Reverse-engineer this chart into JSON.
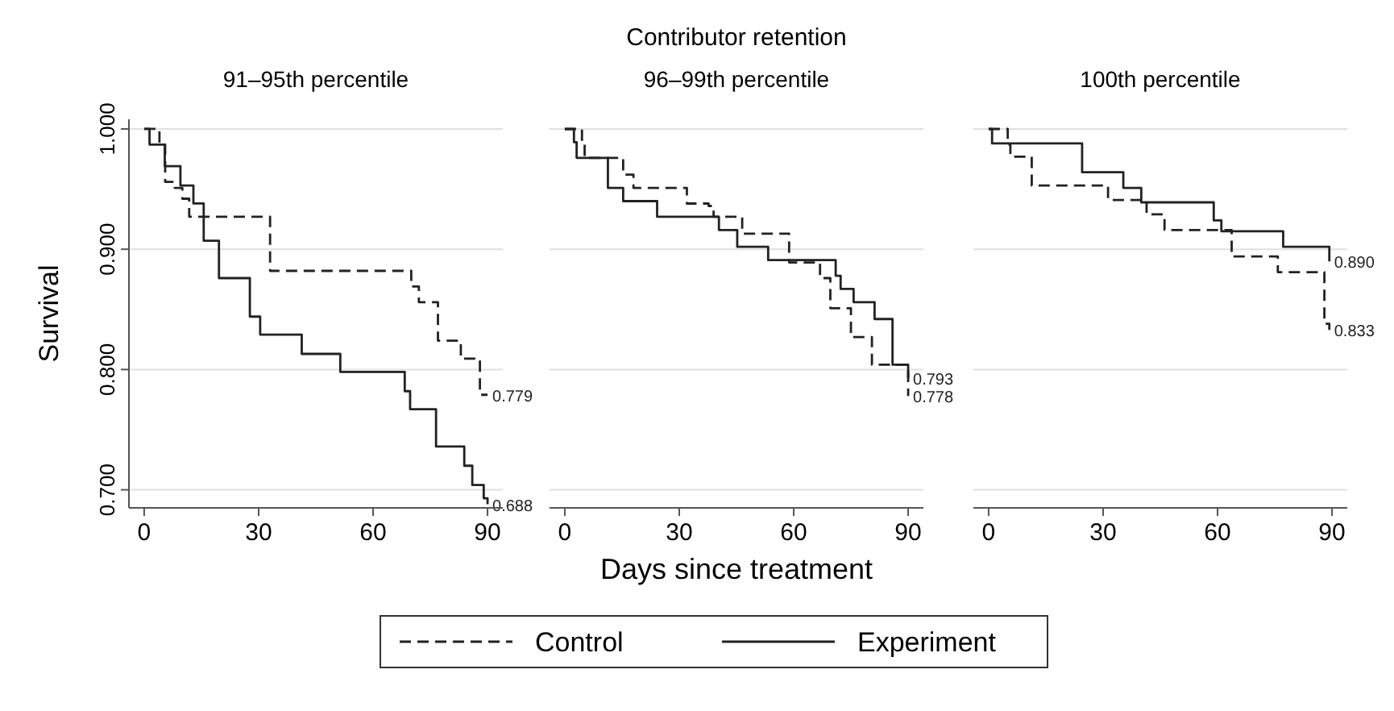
{
  "chart_data": [
    {
      "type": "step",
      "title": "91–95th percentile",
      "ylabel": "Survival",
      "xlim": [
        -4,
        94
      ],
      "xticks": [
        0,
        30,
        60,
        90
      ],
      "ylim": [
        0.685,
        1.008
      ],
      "yticks": [
        {
          "value": 0.7,
          "label": "0.700"
        },
        {
          "value": 0.8,
          "label": "0.800"
        },
        {
          "value": 0.9,
          "label": "0.900"
        },
        {
          "value": 1,
          "label": "1.000"
        }
      ],
      "grid": "y",
      "legend": false,
      "series": [
        {
          "color": "#222222",
          "line_style": "dashed",
          "x": [
            0,
            4,
            5.5,
            8,
            10,
            11.8,
            33,
            70,
            72,
            77,
            83,
            88,
            90
          ],
          "values": [
            1,
            0.987,
            0.956,
            0.951,
            0.942,
            0.927,
            0.882,
            0.869,
            0.856,
            0.824,
            0.809,
            0.779,
            0.779
          ],
          "value_labels": [
            null,
            null,
            null,
            null,
            null,
            null,
            null,
            null,
            null,
            null,
            null,
            null,
            "0.779"
          ]
        },
        {
          "color": "#222222",
          "line_style": "solid",
          "x": [
            0,
            1.4,
            5.4,
            9.5,
            12.9,
            15.6,
            19.6,
            27.7,
            30.4,
            41.3,
            51.4,
            68.3,
            69.7,
            76.5,
            83.9,
            86,
            89,
            90
          ],
          "values": [
            1,
            0.987,
            0.969,
            0.953,
            0.938,
            0.907,
            0.876,
            0.844,
            0.829,
            0.813,
            0.798,
            0.782,
            0.767,
            0.736,
            0.72,
            0.704,
            0.693,
            0.688
          ],
          "value_labels": [
            null,
            null,
            null,
            null,
            null,
            null,
            null,
            null,
            null,
            null,
            null,
            null,
            null,
            null,
            null,
            null,
            null,
            "0.688"
          ]
        }
      ]
    },
    {
      "type": "step",
      "title": "96–99th percentile",
      "xlabel": "Days since treatment",
      "annotations": [
        "Contributor retention"
      ],
      "xlim": [
        -4,
        94
      ],
      "xticks": [
        0,
        30,
        60,
        90
      ],
      "ylim": [
        0.685,
        1
      ],
      "yticks": [
        0.7,
        0.8,
        0.9,
        1
      ],
      "grid": "y",
      "tick_labels": "x",
      "legend": "bottom",
      "series": [
        {
          "name": "Control",
          "color": "#222222",
          "line_style": "dashed",
          "x": [
            0,
            4.5,
            5.2,
            15.3,
            18,
            32,
            37.7,
            39,
            46.5,
            58.8,
            66.9,
            69.6,
            75,
            80.5,
            90
          ],
          "values": [
            1,
            0.989,
            0.976,
            0.962,
            0.951,
            0.938,
            0.936,
            0.927,
            0.913,
            0.889,
            0.876,
            0.851,
            0.827,
            0.804,
            0.778
          ],
          "value_labels": [
            null,
            null,
            null,
            null,
            null,
            null,
            null,
            null,
            null,
            null,
            null,
            null,
            null,
            null,
            "0.778"
          ]
        },
        {
          "name": "Experiment",
          "color": "#222222",
          "line_style": "solid",
          "x": [
            0,
            2.4,
            3.1,
            11.3,
            15.3,
            24.2,
            40.4,
            45.2,
            53.3,
            71,
            72.3,
            75.7,
            81.2,
            85.9,
            90
          ],
          "values": [
            1,
            0.989,
            0.976,
            0.951,
            0.94,
            0.927,
            0.916,
            0.902,
            0.891,
            0.878,
            0.867,
            0.856,
            0.842,
            0.804,
            0.793
          ],
          "value_labels": [
            null,
            null,
            null,
            null,
            null,
            null,
            null,
            null,
            null,
            null,
            null,
            null,
            null,
            null,
            "0.793"
          ]
        }
      ]
    },
    {
      "type": "step",
      "title": "100th percentile",
      "xlim": [
        -4,
        94
      ],
      "xticks": [
        0,
        30,
        60,
        90
      ],
      "ylim": [
        0.685,
        1
      ],
      "yticks": [
        0.7,
        0.8,
        0.9,
        1
      ],
      "grid": "y",
      "tick_labels": "x",
      "legend": false,
      "series": [
        {
          "color": "#222222",
          "line_style": "dashed",
          "x": [
            0,
            5,
            5.7,
            11.3,
            31.3,
            41.4,
            46.1,
            63.7,
            75.8,
            88,
            89.3
          ],
          "values": [
            1,
            0.987,
            0.977,
            0.953,
            0.941,
            0.929,
            0.916,
            0.894,
            0.881,
            0.838,
            0.833
          ],
          "value_labels": [
            null,
            null,
            null,
            null,
            null,
            null,
            null,
            null,
            null,
            null,
            "0.833"
          ]
        },
        {
          "color": "#222222",
          "line_style": "solid",
          "x": [
            0,
            0.9,
            24.5,
            35.3,
            40,
            59,
            61,
            77.2,
            89.3
          ],
          "values": [
            1,
            0.988,
            0.964,
            0.951,
            0.939,
            0.924,
            0.915,
            0.902,
            0.89
          ],
          "value_labels": [
            null,
            null,
            null,
            null,
            null,
            null,
            null,
            null,
            "0.890"
          ]
        }
      ]
    }
  ]
}
